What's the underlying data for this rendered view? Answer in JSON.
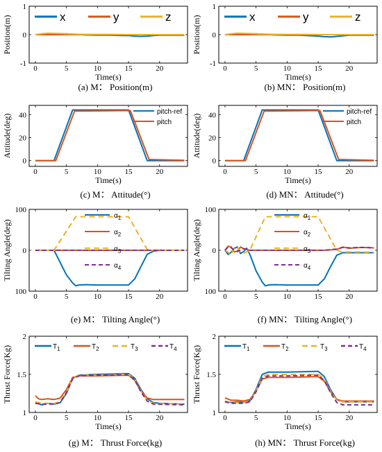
{
  "colors": {
    "blue": "#0072BD",
    "orange": "#D95319",
    "yellow": "#EDB120",
    "purple": "#7E2F8E"
  },
  "chart_data": [
    {
      "id": "a",
      "type": "line",
      "caption": "(a) M： Position(m)",
      "xlabel": "Time(s)",
      "ylabel": "Position(m)",
      "xlim": [
        -1,
        24.5
      ],
      "ylim": [
        -1,
        1
      ],
      "xticks": [
        0,
        5,
        10,
        15,
        20
      ],
      "yticks": [
        -1,
        0,
        1
      ],
      "legend": {
        "placement": "top",
        "style": "big"
      },
      "series": [
        {
          "name": "x",
          "color": "blue",
          "dash": "",
          "x": [
            0,
            2,
            4,
            5,
            6,
            8,
            10,
            12,
            14,
            15,
            16,
            17,
            18,
            19,
            20,
            22,
            24
          ],
          "y": [
            0,
            0.01,
            0.02,
            0.03,
            0.02,
            -0.01,
            -0.02,
            -0.02,
            -0.03,
            -0.03,
            -0.05,
            -0.06,
            -0.05,
            -0.03,
            -0.02,
            -0.02,
            -0.02
          ]
        },
        {
          "name": "y",
          "color": "orange",
          "dash": "",
          "x": [
            0,
            24
          ],
          "y": [
            0,
            0
          ]
        },
        {
          "name": "z",
          "color": "yellow",
          "dash": "",
          "x": [
            0,
            1,
            2,
            4,
            6,
            8,
            12,
            16,
            20,
            24
          ],
          "y": [
            0,
            0.03,
            0.05,
            0.04,
            0.02,
            0.01,
            0.01,
            0,
            0,
            0
          ]
        }
      ]
    },
    {
      "id": "b",
      "type": "line",
      "caption": "(b) MN： Position(m)",
      "xlabel": "Time(s)",
      "ylabel": "Position(m)",
      "xlim": [
        -1,
        24.5
      ],
      "ylim": [
        -1,
        1
      ],
      "xticks": [
        0,
        5,
        10,
        15,
        20
      ],
      "yticks": [
        -1,
        0,
        1
      ],
      "legend": {
        "placement": "top",
        "style": "big"
      },
      "series": [
        {
          "name": "x",
          "color": "blue",
          "dash": "",
          "x": [
            0,
            2,
            4,
            5,
            6,
            8,
            10,
            12,
            14,
            15,
            16,
            17,
            18,
            19,
            20,
            22,
            24
          ],
          "y": [
            0,
            0.01,
            0.02,
            0.03,
            0.02,
            -0.01,
            -0.02,
            -0.02,
            -0.04,
            -0.05,
            -0.07,
            -0.08,
            -0.06,
            -0.04,
            -0.02,
            -0.02,
            -0.02
          ]
        },
        {
          "name": "y",
          "color": "orange",
          "dash": "",
          "x": [
            0,
            24
          ],
          "y": [
            0,
            0
          ]
        },
        {
          "name": "z",
          "color": "yellow",
          "dash": "",
          "x": [
            0,
            1,
            2,
            4,
            6,
            8,
            12,
            16,
            20,
            24
          ],
          "y": [
            0,
            0.03,
            0.05,
            0.04,
            0.02,
            0.01,
            0.01,
            0,
            0,
            0
          ]
        }
      ]
    },
    {
      "id": "c",
      "type": "line",
      "caption": "(c) M： Attitude(°)",
      "xlabel": "Time(s)",
      "ylabel": "Attitude(deg)",
      "xlim": [
        -1,
        24.5
      ],
      "ylim": [
        -5,
        48
      ],
      "xticks": [
        0,
        5,
        10,
        15,
        20
      ],
      "yticks": [
        0,
        20,
        40
      ],
      "legend": {
        "placement": "right",
        "style": "small"
      },
      "series": [
        {
          "name": "pitch-ref",
          "color": "blue",
          "dash": "",
          "x": [
            0,
            3,
            6,
            15,
            18,
            24
          ],
          "y": [
            0,
            0,
            44,
            44,
            0,
            0
          ]
        },
        {
          "name": "pitch",
          "color": "orange",
          "dash": "",
          "x": [
            0,
            3.3,
            6.3,
            15.3,
            18.3,
            24
          ],
          "y": [
            0,
            0,
            43,
            43.5,
            1,
            0.3
          ]
        }
      ]
    },
    {
      "id": "d",
      "type": "line",
      "caption": "(d) MN： Attitude(°)",
      "xlabel": "Time(s)",
      "ylabel": "Attitude(deg)",
      "xlim": [
        -1,
        24.5
      ],
      "ylim": [
        -5,
        48
      ],
      "xticks": [
        0,
        5,
        10,
        15,
        20
      ],
      "yticks": [
        0,
        20,
        40
      ],
      "legend": {
        "placement": "right",
        "style": "small"
      },
      "series": [
        {
          "name": "pitch-ref",
          "color": "blue",
          "dash": "",
          "x": [
            0,
            3,
            6,
            15,
            18,
            24
          ],
          "y": [
            0,
            0,
            44,
            44,
            0,
            0
          ]
        },
        {
          "name": "pitch",
          "color": "orange",
          "dash": "",
          "x": [
            0,
            3.3,
            6.3,
            15.3,
            18.3,
            24
          ],
          "y": [
            0,
            0,
            43,
            43.5,
            1,
            0.3
          ]
        }
      ]
    },
    {
      "id": "e",
      "type": "line",
      "caption": "(e) M： Tilting Angle(°)",
      "xlabel": "",
      "ylabel": "Tilting Angle(deg)",
      "xlim": [
        -1,
        24.5
      ],
      "ylim": [
        -100,
        100
      ],
      "xticks": [
        0,
        5,
        10,
        15,
        20
      ],
      "yticks": [
        -100,
        0,
        100
      ],
      "ytick_labels": [
        "100",
        "0",
        "100"
      ],
      "legend": {
        "placement": "center",
        "style": "alpha"
      },
      "series": [
        {
          "name": "1",
          "color": "blue",
          "dash": "",
          "x": [
            0,
            3,
            4,
            5,
            6,
            6.5,
            7,
            8,
            10,
            12,
            14,
            15,
            16,
            17,
            18,
            19,
            20,
            24
          ],
          "y": [
            0,
            0,
            -30,
            -60,
            -80,
            -87,
            -85,
            -84,
            -85,
            -85,
            -85,
            -85,
            -70,
            -40,
            -10,
            -2,
            0,
            0
          ]
        },
        {
          "name": "2",
          "color": "orange",
          "dash": "",
          "x": [
            0,
            24
          ],
          "y": [
            0,
            0
          ]
        },
        {
          "name": "3",
          "color": "yellow",
          "dash": "8,5",
          "x": [
            0,
            3,
            6.5,
            15,
            18,
            19,
            24
          ],
          "y": [
            0,
            0,
            82,
            82,
            2,
            0,
            0
          ]
        },
        {
          "name": "4",
          "color": "purple",
          "dash": "6,4",
          "x": [
            0,
            24
          ],
          "y": [
            0,
            0
          ]
        }
      ]
    },
    {
      "id": "f",
      "type": "line",
      "caption": "(f) MN： Tilting Angle(°)",
      "xlabel": "",
      "ylabel": "Tilting Angle(deg)",
      "xlim": [
        -1,
        24.5
      ],
      "ylim": [
        -100,
        100
      ],
      "xticks": [
        0,
        5,
        10,
        15,
        20
      ],
      "yticks": [
        -100,
        0,
        100
      ],
      "ytick_labels": [
        "100",
        "0",
        "100"
      ],
      "legend": {
        "placement": "center",
        "style": "alpha"
      },
      "series": [
        {
          "name": "1",
          "color": "blue",
          "dash": "",
          "x": [
            0,
            0.5,
            1,
            1.5,
            2,
            2.5,
            3,
            3.5,
            4,
            5,
            6,
            6.5,
            7,
            8,
            10,
            12,
            14,
            15,
            16,
            17,
            18,
            19,
            24
          ],
          "y": [
            0,
            -10,
            -5,
            5,
            8,
            -8,
            -3,
            5,
            -10,
            -50,
            -78,
            -87,
            -85,
            -84,
            -85,
            -85,
            -85,
            -85,
            -70,
            -40,
            -12,
            -6,
            -6
          ]
        },
        {
          "name": "2",
          "color": "orange",
          "dash": "",
          "x": [
            0,
            0.5,
            1,
            1.5,
            2,
            2.5,
            3,
            4,
            6,
            10,
            16,
            18,
            19,
            20,
            22,
            24
          ],
          "y": [
            0,
            10,
            8,
            -4,
            -2,
            8,
            4,
            0,
            0,
            0,
            0,
            2,
            8,
            5,
            7,
            6
          ]
        },
        {
          "name": "3",
          "color": "yellow",
          "dash": "8,5",
          "x": [
            0,
            0.5,
            1,
            1.5,
            2,
            2.5,
            3,
            4,
            6.5,
            15,
            18,
            19,
            20,
            24
          ],
          "y": [
            0,
            -5,
            -10,
            5,
            8,
            -5,
            -8,
            0,
            82,
            82,
            0,
            -5,
            -4,
            -5
          ]
        },
        {
          "name": "4",
          "color": "purple",
          "dash": "6,4",
          "x": [
            0,
            0.5,
            1,
            2,
            3,
            4,
            16,
            18,
            19,
            20,
            22,
            24
          ],
          "y": [
            0,
            8,
            6,
            -3,
            4,
            0,
            0,
            3,
            7,
            6,
            7,
            6
          ]
        }
      ]
    },
    {
      "id": "g",
      "type": "line",
      "caption": "(g) M： Thrust Force(kg)",
      "xlabel": "Time(s)",
      "ylabel": "Thrust Force(Kg)",
      "xlim": [
        -1,
        24.5
      ],
      "ylim": [
        1,
        2
      ],
      "xticks": [
        0,
        5,
        10,
        15,
        20
      ],
      "yticks": [
        1,
        1.5,
        2
      ],
      "legend": {
        "placement": "top",
        "style": "thrust"
      },
      "series": [
        {
          "name": "1",
          "color": "blue",
          "dash": "",
          "x": [
            0,
            1,
            2,
            3,
            4,
            5,
            6,
            7,
            10,
            15,
            16,
            17,
            18,
            19,
            20,
            24
          ],
          "y": [
            1.13,
            1.1,
            1.12,
            1.11,
            1.13,
            1.25,
            1.45,
            1.49,
            1.5,
            1.51,
            1.45,
            1.3,
            1.18,
            1.13,
            1.12,
            1.11
          ]
        },
        {
          "name": "2",
          "color": "orange",
          "dash": "",
          "x": [
            0,
            0.5,
            1,
            2,
            3,
            4,
            5,
            6,
            7,
            10,
            15,
            16,
            17,
            18,
            19,
            24
          ],
          "y": [
            1.22,
            1.18,
            1.17,
            1.18,
            1.17,
            1.19,
            1.3,
            1.46,
            1.48,
            1.48,
            1.49,
            1.42,
            1.28,
            1.19,
            1.17,
            1.17
          ]
        },
        {
          "name": "3",
          "color": "yellow",
          "dash": "8,5",
          "x": [
            0,
            1,
            2,
            3,
            4,
            5,
            6,
            7,
            10,
            15,
            16,
            17,
            18,
            19,
            24
          ],
          "y": [
            1.14,
            1.12,
            1.12,
            1.12,
            1.14,
            1.27,
            1.45,
            1.49,
            1.49,
            1.5,
            1.44,
            1.28,
            1.16,
            1.12,
            1.11
          ]
        },
        {
          "name": "4",
          "color": "purple",
          "dash": "6,4",
          "x": [
            0,
            1,
            2,
            3,
            4,
            5,
            6,
            7,
            10,
            15,
            16,
            17,
            18,
            19,
            24
          ],
          "y": [
            1.12,
            1.11,
            1.11,
            1.11,
            1.13,
            1.26,
            1.44,
            1.48,
            1.49,
            1.49,
            1.43,
            1.27,
            1.15,
            1.11,
            1.1
          ]
        }
      ]
    },
    {
      "id": "h",
      "type": "line",
      "caption": "(h) MN： Thrust Force(kg)",
      "xlabel": "Time(s)",
      "ylabel": "Thrust Force(Kg)",
      "xlim": [
        -1,
        24.5
      ],
      "ylim": [
        1,
        2
      ],
      "xticks": [
        0,
        5,
        10,
        15,
        20
      ],
      "yticks": [
        1,
        1.5,
        2
      ],
      "legend": {
        "placement": "top",
        "style": "thrust"
      },
      "series": [
        {
          "name": "1",
          "color": "blue",
          "dash": "",
          "x": [
            0,
            1,
            2,
            3,
            4,
            5,
            6,
            7,
            10,
            15,
            16,
            17,
            18,
            19,
            24
          ],
          "y": [
            1.15,
            1.13,
            1.14,
            1.13,
            1.15,
            1.3,
            1.5,
            1.53,
            1.53,
            1.54,
            1.47,
            1.3,
            1.17,
            1.14,
            1.14
          ]
        },
        {
          "name": "2",
          "color": "orange",
          "dash": "",
          "x": [
            0,
            1,
            2,
            3,
            4,
            5,
            6,
            7,
            10,
            15,
            16,
            17,
            18,
            19,
            24
          ],
          "y": [
            1.19,
            1.16,
            1.16,
            1.15,
            1.17,
            1.28,
            1.44,
            1.46,
            1.46,
            1.47,
            1.41,
            1.27,
            1.17,
            1.15,
            1.15
          ]
        },
        {
          "name": "3",
          "color": "yellow",
          "dash": "8,5",
          "x": [
            0,
            1,
            2,
            3,
            4,
            5,
            6,
            7,
            10,
            15,
            16,
            17,
            18,
            19,
            24
          ],
          "y": [
            1.15,
            1.13,
            1.13,
            1.13,
            1.15,
            1.28,
            1.47,
            1.5,
            1.5,
            1.5,
            1.44,
            1.28,
            1.16,
            1.14,
            1.14
          ]
        },
        {
          "name": "4",
          "color": "purple",
          "dash": "6,4",
          "x": [
            0,
            1,
            2,
            3,
            4,
            5,
            6,
            7,
            10,
            15,
            16,
            17,
            18,
            19,
            24
          ],
          "y": [
            1.14,
            1.12,
            1.12,
            1.12,
            1.14,
            1.27,
            1.45,
            1.48,
            1.48,
            1.49,
            1.42,
            1.26,
            1.13,
            1.1,
            1.1
          ]
        }
      ]
    }
  ]
}
